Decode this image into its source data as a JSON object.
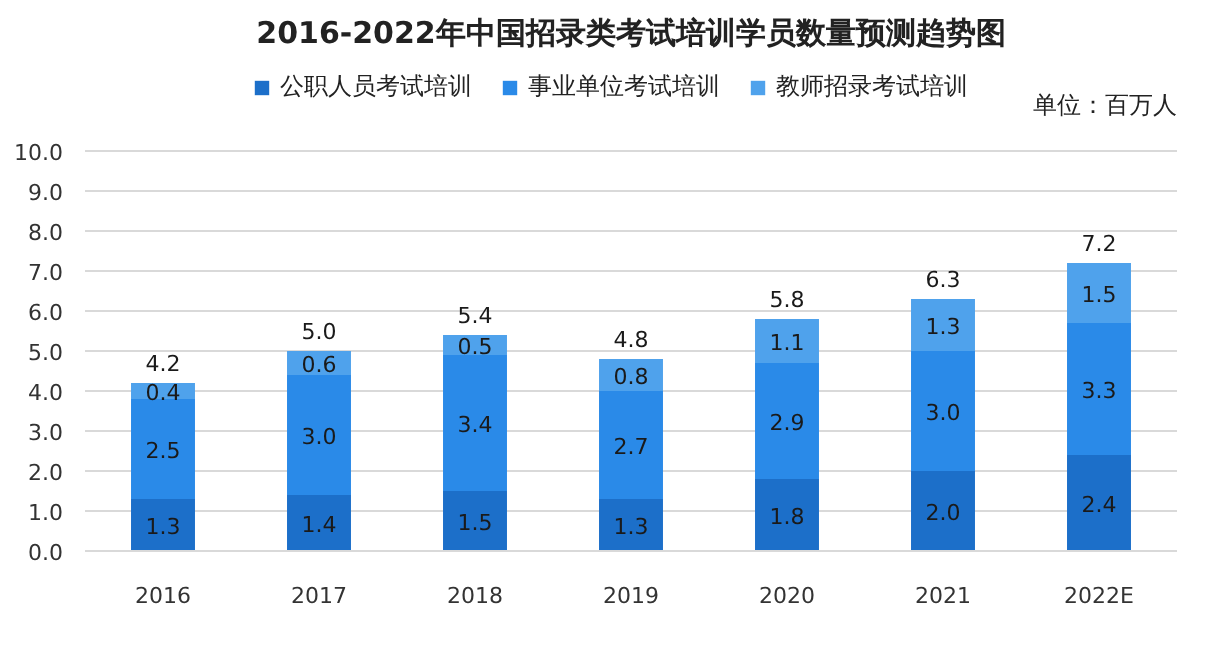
{
  "chart_data": {
    "type": "bar",
    "title": "2016-2022年中国招录类考试培训学员数量预测趋势图",
    "annotations": [
      "单位：百万人"
    ],
    "categories": [
      "2016",
      "2017",
      "2018",
      "2019",
      "2020",
      "2021",
      "2022E"
    ],
    "series": [
      {
        "name": "公职人员考试培训",
        "color": "#1c6fc9",
        "values": [
          1.3,
          1.4,
          1.5,
          1.3,
          1.8,
          2.0,
          2.4
        ],
        "value_labels": [
          "1.3",
          "1.4",
          "1.5",
          "1.3",
          "1.8",
          "2.0",
          "2.4"
        ]
      },
      {
        "name": "事业单位考试培训",
        "color": "#2a8ae8",
        "values": [
          2.5,
          3.0,
          3.4,
          2.7,
          2.9,
          3.0,
          3.3
        ],
        "value_labels": [
          "2.5",
          "3.0",
          "3.4",
          "2.7",
          "2.9",
          "3.0",
          "3.3"
        ]
      },
      {
        "name": "教师招录考试培训",
        "color": "#4fa2ec",
        "values": [
          0.4,
          0.6,
          0.5,
          0.8,
          1.1,
          1.3,
          1.5
        ],
        "value_labels": [
          "0.4",
          "0.6",
          "0.5",
          "0.8",
          "1.1",
          "1.3",
          "1.5"
        ]
      }
    ],
    "stacked": true,
    "ylim": [
      0,
      10
    ],
    "yticks": [
      {
        "value": 0,
        "label": "0.0"
      },
      {
        "value": 1,
        "label": "1.0"
      },
      {
        "value": 2,
        "label": "2.0"
      },
      {
        "value": 3,
        "label": "3.0"
      },
      {
        "value": 4,
        "label": "4.0"
      },
      {
        "value": 5,
        "label": "5.0"
      },
      {
        "value": 6,
        "label": "6.0"
      },
      {
        "value": 7,
        "label": "7.0"
      },
      {
        "value": 8,
        "label": "8.0"
      },
      {
        "value": 9,
        "label": "9.0"
      },
      {
        "value": 10,
        "label": "10.0"
      }
    ],
    "grid": "y",
    "legend": "top",
    "totals": [
      "4.2",
      "5.0",
      "5.4",
      "4.8",
      "5.8",
      "6.3",
      "7.2"
    ]
  }
}
